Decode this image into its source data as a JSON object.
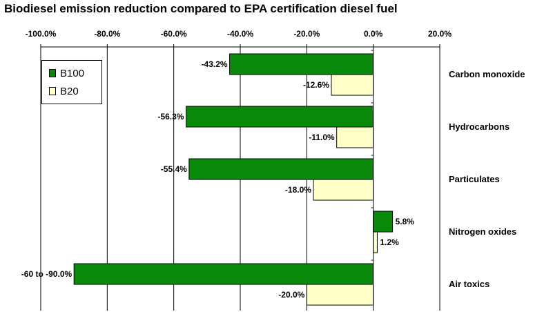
{
  "title": "Biodiesel emission reduction compared to EPA certification diesel fuel",
  "colors": {
    "B100": "#0a8a0a",
    "B20": "#ffffc8"
  },
  "chart_data": {
    "type": "bar",
    "orientation": "horizontal",
    "title": "Biodiesel emission reduction compared to EPA certification diesel fuel",
    "categories": [
      "Carbon monoxide",
      "Hydrocarbons",
      "Particulates",
      "Nitrogen oxides",
      "Air toxics"
    ],
    "series": [
      {
        "name": "B100",
        "values": [
          -43.2,
          -56.3,
          -55.4,
          5.8,
          -90.0
        ],
        "labels": [
          "-43.2%",
          "-56.3%",
          "-55.4%",
          "5.8%",
          "-60 to -90.0%"
        ]
      },
      {
        "name": "B20",
        "values": [
          -12.6,
          -11.0,
          -18.0,
          1.2,
          -20.0
        ],
        "labels": [
          "-12.6%",
          "-11.0%",
          "-18.0%",
          "1.2%",
          "-20.0%"
        ]
      }
    ],
    "xticks": [
      "-100.0%",
      "-80.0%",
      "-60.0%",
      "-40.0%",
      "-20.0%",
      "0.0%",
      "20.0%"
    ],
    "xlim": [
      -100,
      20
    ],
    "xaxis_position": "top",
    "grid": true,
    "legend_position": "top-left"
  }
}
